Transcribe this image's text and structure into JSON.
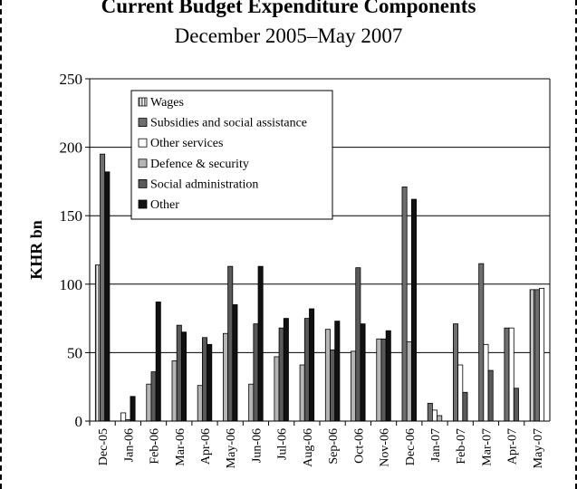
{
  "chart_data": {
    "type": "bar",
    "title": "Current Budget Expenditure Components",
    "subtitle": "December 2005–May 2007",
    "xlabel": "",
    "ylabel": "KHR bn",
    "ylim": [
      0,
      250
    ],
    "yticks": [
      0,
      50,
      100,
      150,
      200,
      250
    ],
    "grid": true,
    "legend_position": "top-left inside plot",
    "categories": [
      "Dec-05",
      "Jan-06",
      "Feb-06",
      "Mar-06",
      "Apr-06",
      "May-06",
      "Jun-06",
      "Jul-06",
      "Aug-06",
      "Sep-06",
      "Oct-06",
      "Nov-06",
      "Dec-06",
      "Jan-07",
      "Feb-07",
      "Mar-07",
      "Apr-07",
      "May-07"
    ],
    "series": [
      {
        "name": "Wages",
        "color": "#8a8a8a",
        "pattern": "vertical-stripes",
        "values": [
          114,
          0,
          0,
          0,
          0,
          0,
          0,
          0,
          0,
          0,
          0,
          0,
          0,
          0,
          0,
          0,
          0,
          96
        ]
      },
      {
        "name": "Subsidies and social assistance",
        "color": "#6e6e6e",
        "pattern": "solid",
        "values": [
          195,
          0,
          0,
          0,
          0,
          0,
          0,
          0,
          0,
          0,
          0,
          0,
          171,
          13,
          71,
          115,
          68,
          96
        ]
      },
      {
        "name": "Other services",
        "color": "#ffffff",
        "pattern": "outline",
        "values": [
          0,
          6,
          0,
          0,
          0,
          0,
          0,
          0,
          0,
          0,
          0,
          0,
          0,
          8,
          41,
          56,
          68,
          97
        ]
      },
      {
        "name": "Defence & security",
        "color": "#b5b5b5",
        "pattern": "solid",
        "values": [
          0,
          1,
          27,
          44,
          26,
          64,
          27,
          47,
          41,
          67,
          51,
          60,
          58,
          4,
          0,
          0,
          0,
          0
        ]
      },
      {
        "name": "Social administration",
        "color": "#5a5a5a",
        "pattern": "solid",
        "values": [
          0,
          0,
          36,
          70,
          61,
          113,
          71,
          68,
          75,
          52,
          112,
          60,
          0,
          0,
          21,
          37,
          24,
          0
        ]
      },
      {
        "name": "Other",
        "color": "#111111",
        "pattern": "solid",
        "values": [
          182,
          18,
          87,
          65,
          56,
          85,
          113,
          75,
          82,
          73,
          71,
          66,
          162,
          0,
          0,
          0,
          0,
          0
        ]
      }
    ]
  }
}
